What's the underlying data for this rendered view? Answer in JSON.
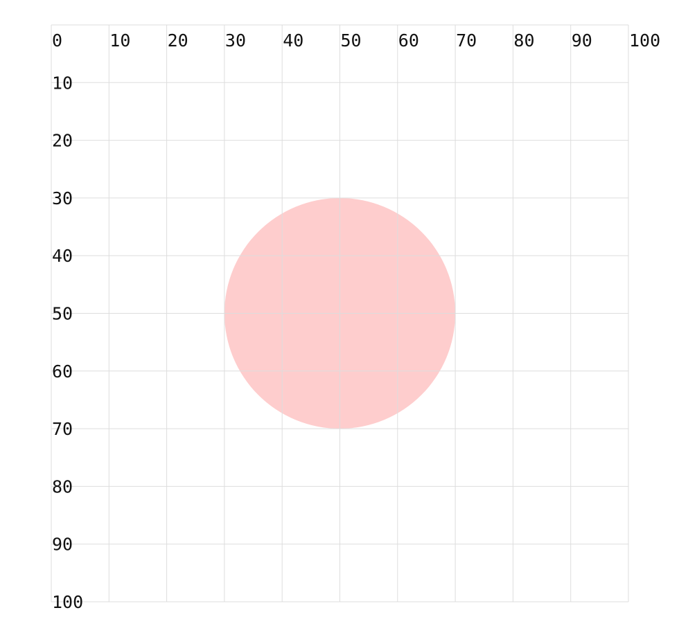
{
  "grid": {
    "x_ticks": [
      0,
      10,
      20,
      30,
      40,
      50,
      60,
      70,
      80,
      90,
      100
    ],
    "y_ticks": [
      10,
      20,
      30,
      40,
      50,
      60,
      70,
      80,
      90,
      100
    ],
    "x_range": [
      0,
      100
    ],
    "y_range": [
      0,
      100
    ],
    "line_color": "#dddddd"
  },
  "circle": {
    "center": [
      50,
      50
    ],
    "radius": 20,
    "fill": "#fecaca"
  }
}
